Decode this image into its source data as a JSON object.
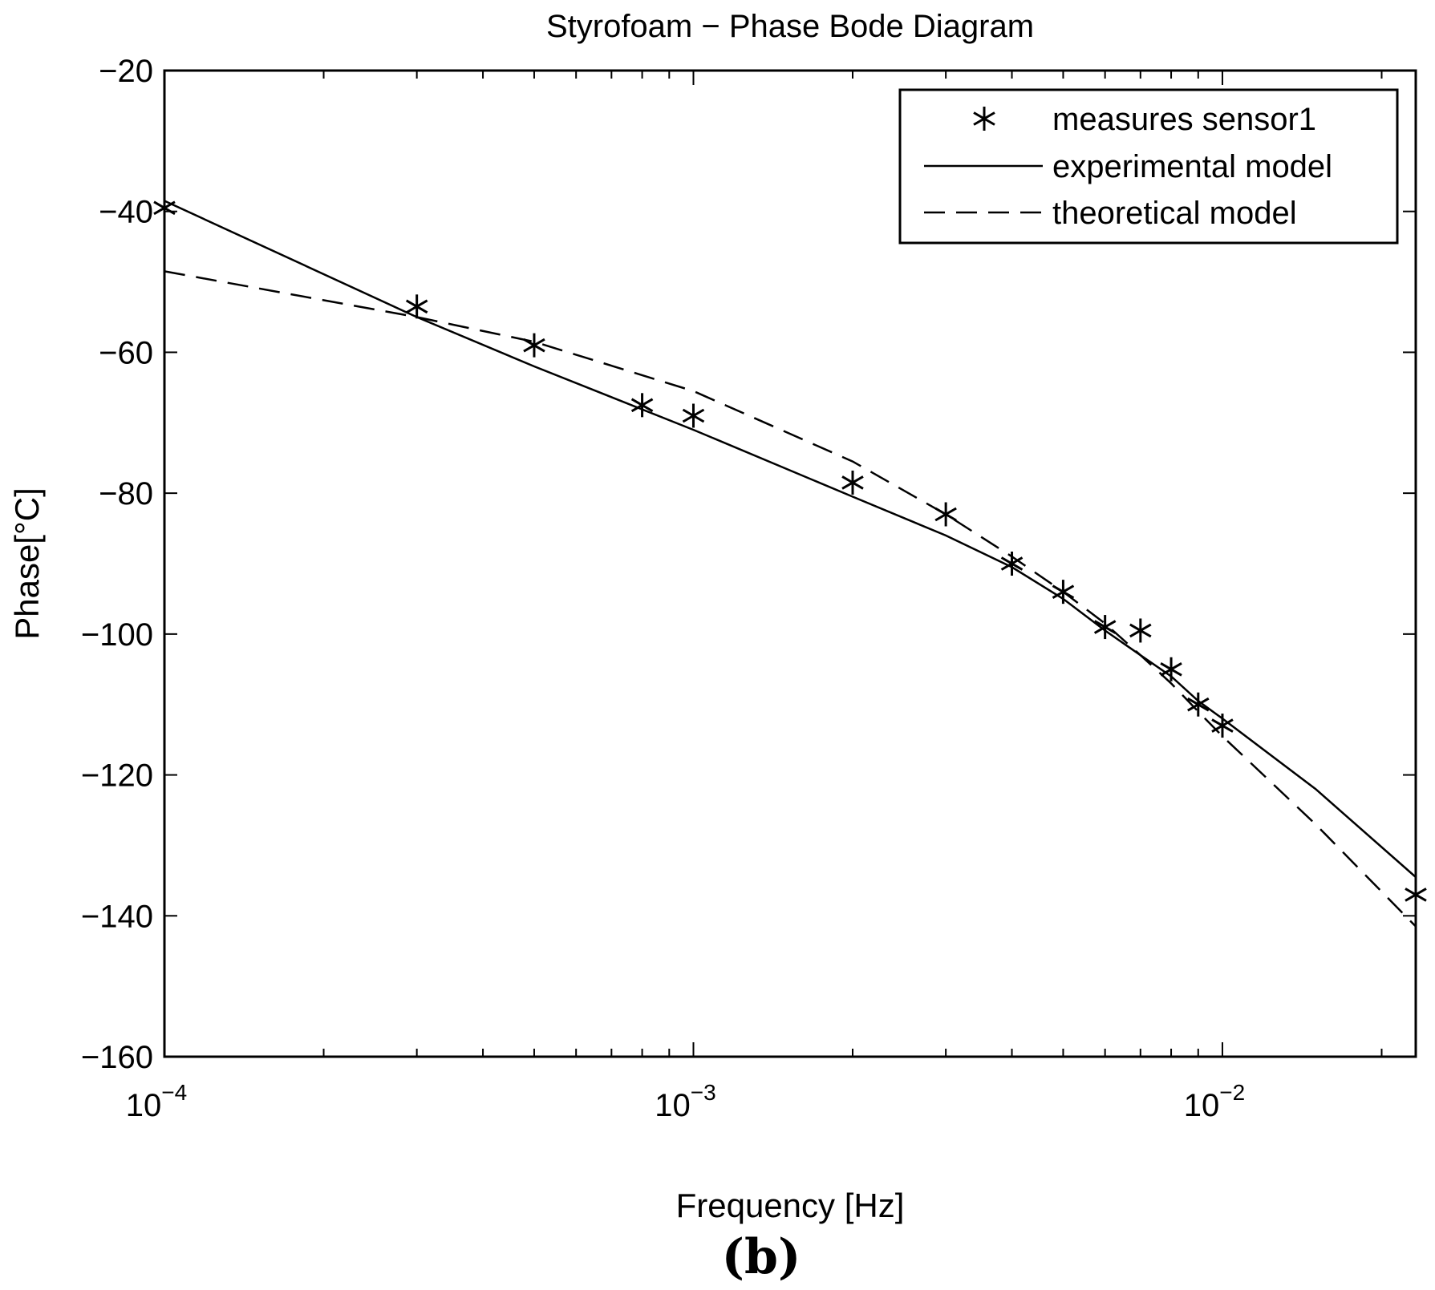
{
  "chart_data": {
    "type": "line",
    "title": "Styrofoam − Phase Bode Diagram",
    "xlabel": "Frequency [Hz]",
    "ylabel": "Phase[°C]",
    "xscale": "log",
    "xlim": [
      0.0001,
      0.0232
    ],
    "ylim": [
      -160,
      -20
    ],
    "grid": false,
    "legend_position": "top-right",
    "yticks": [
      -20,
      -40,
      -60,
      -80,
      -100,
      -120,
      -140,
      -160
    ],
    "ytick_labels": [
      "−20",
      "−40",
      "−60",
      "−80",
      "−100",
      "−120",
      "−140",
      "−160"
    ],
    "xticks_major": [
      {
        "value": 0.0001,
        "base": "10",
        "exp": "−4"
      },
      {
        "value": 0.001,
        "base": "10",
        "exp": "−3"
      },
      {
        "value": 0.01,
        "base": "10",
        "exp": "−2"
      }
    ],
    "series": [
      {
        "name": "measures sensor1",
        "style": "markers-asterisk",
        "x": [
          0.0001,
          0.0003,
          0.0005,
          0.0008,
          0.001,
          0.002,
          0.003,
          0.004,
          0.005,
          0.006,
          0.007,
          0.008,
          0.009,
          0.01,
          0.0232
        ],
        "y": [
          -39.5,
          -53.5,
          -59,
          -67.5,
          -69,
          -78.5,
          -83,
          -90,
          -94,
          -99,
          -99.5,
          -105,
          -110,
          -113,
          -137
        ]
      },
      {
        "name": "experimental model",
        "style": "solid",
        "x": [
          0.0001,
          0.0003,
          0.0005,
          0.001,
          0.002,
          0.003,
          0.004,
          0.005,
          0.006,
          0.007,
          0.008,
          0.009,
          0.01,
          0.015,
          0.0232
        ],
        "y": [
          -38.5,
          -55,
          -62,
          -71,
          -80.5,
          -86,
          -90.5,
          -95,
          -99.5,
          -103,
          -106,
          -109.5,
          -112,
          -122,
          -134.5
        ]
      },
      {
        "name": "theoretical model",
        "style": "dashed",
        "x": [
          0.0001,
          0.0003,
          0.0005,
          0.001,
          0.002,
          0.003,
          0.004,
          0.005,
          0.006,
          0.007,
          0.008,
          0.009,
          0.01,
          0.015,
          0.0232
        ],
        "y": [
          -48.5,
          -55,
          -58.5,
          -65.5,
          -75.5,
          -83,
          -89,
          -94,
          -98.5,
          -103,
          -107,
          -111,
          -114.5,
          -127,
          -141.5
        ]
      }
    ]
  },
  "caption": {
    "prefix": "(",
    "letter": "b",
    "suffix": ")"
  }
}
